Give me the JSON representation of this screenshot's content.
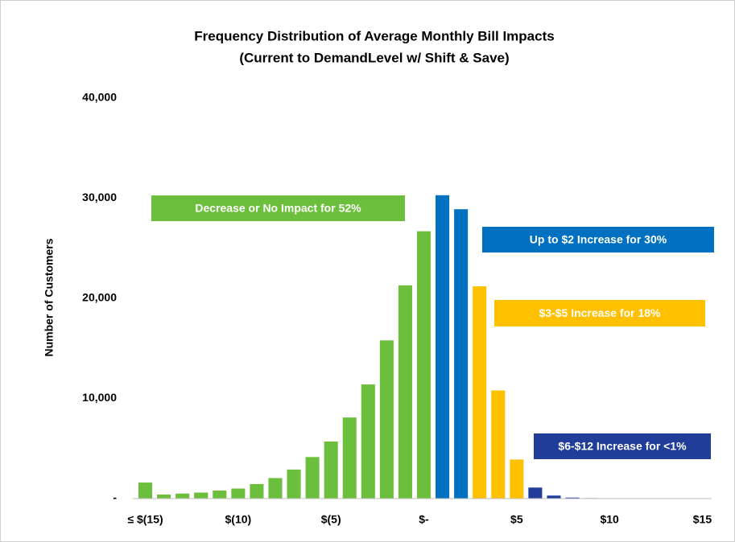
{
  "chart_data": {
    "type": "bar",
    "title": "Frequency Distribution of Average Monthly Bill Impacts",
    "subtitle": "(Current to DemandLevel w/ Shift & Save)",
    "y_axis_label": "Number of Customers",
    "categories": [
      "≤ $(15)",
      null,
      null,
      null,
      null,
      "$(10)",
      null,
      null,
      null,
      null,
      "$(5)",
      null,
      null,
      null,
      null,
      "$-",
      null,
      null,
      null,
      null,
      "$5",
      null,
      null,
      null,
      null,
      "$10",
      null,
      null,
      null,
      null,
      "$15"
    ],
    "values": [
      1600,
      400,
      500,
      600,
      800,
      1000,
      1450,
      2050,
      2900,
      4150,
      5700,
      8100,
      11400,
      15800,
      21300,
      26700,
      30300,
      28900,
      21200,
      10800,
      3900,
      1100,
      300,
      100,
      50,
      20,
      0,
      0,
      0,
      0,
      0
    ],
    "colors": [
      "#6cbf3c",
      "#6cbf3c",
      "#6cbf3c",
      "#6cbf3c",
      "#6cbf3c",
      "#6cbf3c",
      "#6cbf3c",
      "#6cbf3c",
      "#6cbf3c",
      "#6cbf3c",
      "#6cbf3c",
      "#6cbf3c",
      "#6cbf3c",
      "#6cbf3c",
      "#6cbf3c",
      "#6cbf3c",
      "#0070c0",
      "#0070c0",
      "#ffc000",
      "#ffc000",
      "#ffc000",
      "#1f3d99",
      "#1f3d99",
      "#1f3d99",
      "#1f3d99",
      "#1f3d99",
      "#1f3d99",
      "#1f3d99",
      "#1f3d99",
      "#1f3d99",
      "#1f3d99"
    ],
    "ylim": [
      0,
      40000
    ],
    "yticks": [
      {
        "value": 0,
        "label": "-"
      },
      {
        "value": 10000,
        "label": "10,000"
      },
      {
        "value": 20000,
        "label": "20,000"
      },
      {
        "value": 30000,
        "label": "30,000"
      },
      {
        "value": 40000,
        "label": "40,000"
      }
    ],
    "grid": false,
    "annotations": [
      {
        "text": "Decrease or No Impact for 52%",
        "color": "#6cbf3c"
      },
      {
        "text": "Up to $2 Increase for 30%",
        "color": "#0070c0"
      },
      {
        "text": "$3-$5 Increase for 18%",
        "color": "#ffc000"
      },
      {
        "text": "$6-$12 Increase for <1%",
        "color": "#1f3d99"
      }
    ]
  }
}
